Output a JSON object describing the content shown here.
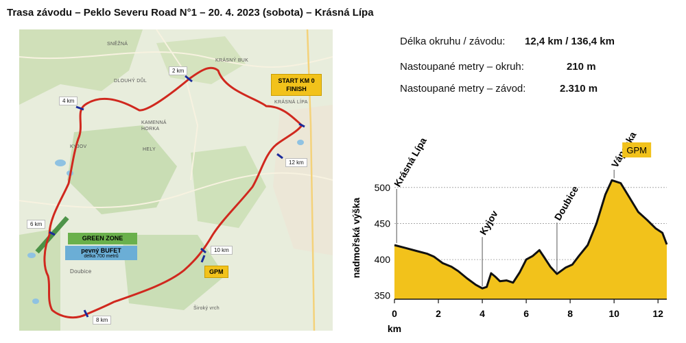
{
  "title": "Trasa závodu – Peklo Severu Road N°1 – 20. 4. 2023 (sobota) – Krásná Lípa",
  "map": {
    "places": [
      "SNĚŽNÁ",
      "KRÁSNÝ BUK",
      "DLOUHÝ DŮL",
      "KRÁSNÁ LÍPA",
      "KAMENNÁ HORKA",
      "KYJOV",
      "HELY",
      "Doubice",
      "Široký vrch"
    ],
    "km_markers": [
      "2 km",
      "4 km",
      "6 km",
      "8 km",
      "10 km",
      "12 km"
    ],
    "start_box": {
      "line1": "START KM 0",
      "line2": "FINISH"
    },
    "gpm_label": "GPM",
    "green_zone": "GREEN ZONE",
    "bufet_title": "pevný BUFET",
    "bufet_sub": "délka 700 metrů",
    "route_color": "#d0281e"
  },
  "stats": [
    {
      "label": "Délka okruhu / závodu:",
      "value": "12,4 km / 136,4 km"
    },
    {
      "label": "Nastoupané metry – okruh:",
      "value": "210 m"
    },
    {
      "label": "Nastoupané metry – závod:",
      "value": "2.310 m"
    }
  ],
  "chart_data": {
    "type": "area",
    "title": "",
    "xlabel": "km",
    "ylabel": "nadmořská výška",
    "xlim": [
      0,
      12.4
    ],
    "ylim": [
      345,
      515
    ],
    "xticks": [
      0,
      2,
      4,
      6,
      8,
      10,
      12
    ],
    "yticks": [
      350,
      400,
      450,
      500
    ],
    "fill_color": "#f2c21b",
    "x": [
      0,
      0.5,
      1.0,
      1.5,
      1.8,
      2.2,
      2.6,
      2.9,
      3.3,
      3.7,
      4.0,
      4.2,
      4.4,
      4.6,
      4.8,
      5.1,
      5.4,
      5.7,
      6.0,
      6.3,
      6.6,
      6.8,
      7.1,
      7.4,
      7.8,
      8.1,
      8.4,
      8.8,
      9.2,
      9.6,
      9.9,
      10.3,
      10.7,
      11.1,
      11.5,
      11.9,
      12.2,
      12.4
    ],
    "y": [
      420,
      416,
      412,
      408,
      404,
      395,
      390,
      384,
      374,
      365,
      360,
      362,
      381,
      376,
      370,
      371,
      368,
      382,
      400,
      405,
      413,
      404,
      390,
      380,
      389,
      393,
      405,
      420,
      450,
      490,
      510,
      506,
      486,
      466,
      455,
      443,
      437,
      421
    ],
    "annotations": [
      {
        "label": "Krásná Lípa",
        "x": 0.1
      },
      {
        "label": "Kyjov",
        "x": 4.0
      },
      {
        "label": "Doubice",
        "x": 7.4
      },
      {
        "label": "Vápenka",
        "x": 10.0
      }
    ],
    "gpm_label": "GPM",
    "grid": true
  }
}
